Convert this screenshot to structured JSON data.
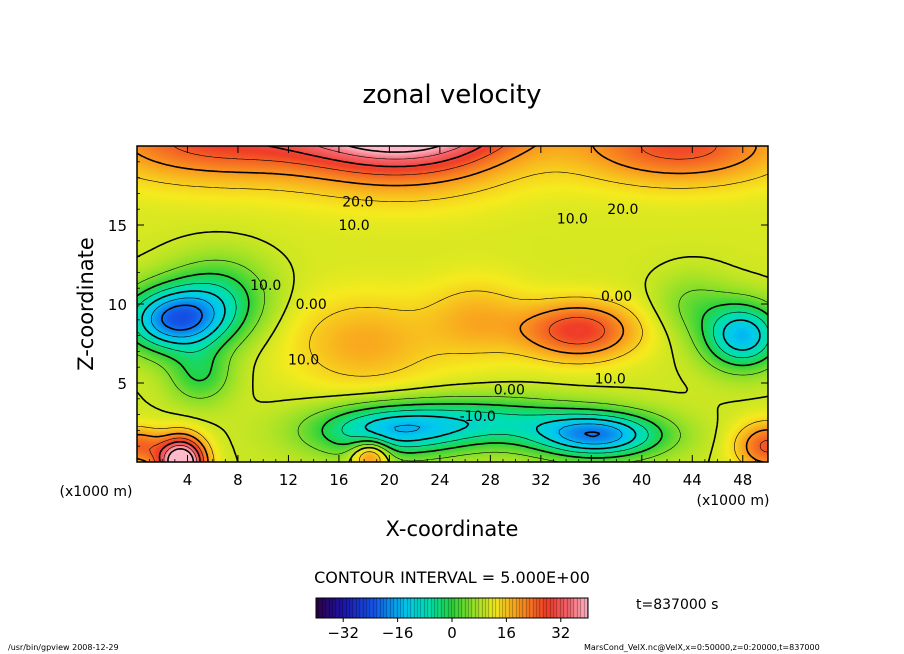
{
  "chart_data": {
    "type": "heatmap",
    "title": "zonal velocity",
    "xlabel": "X-coordinate",
    "ylabel": "Z-coordinate",
    "x_unit_label": "(x1000 m)",
    "y_unit_label": "(x1000 m)",
    "xlim": [
      0,
      50
    ],
    "ylim": [
      0,
      20
    ],
    "x_ticks": [
      4,
      8,
      12,
      16,
      20,
      24,
      28,
      32,
      36,
      40,
      44,
      48
    ],
    "y_ticks": [
      5,
      10,
      15
    ],
    "contour_interval_text": "CONTOUR INTERVAL = 5.000E+00",
    "time_text": "t=837000 s",
    "colorbar": {
      "min": -40,
      "max": 40,
      "ticks": [
        -32,
        -16,
        0,
        16,
        32
      ]
    },
    "contour_labels": [
      {
        "x": 17.5,
        "y": 16.5,
        "text": "20.0"
      },
      {
        "x": 17.2,
        "y": 15.0,
        "text": "10.0"
      },
      {
        "x": 34.5,
        "y": 15.4,
        "text": "10.0"
      },
      {
        "x": 38.5,
        "y": 16.0,
        "text": "20.0"
      },
      {
        "x": 10.2,
        "y": 11.2,
        "text": "10.0"
      },
      {
        "x": 13.8,
        "y": 10.0,
        "text": "0.00"
      },
      {
        "x": 38.0,
        "y": 10.5,
        "text": "0.00"
      },
      {
        "x": 13.2,
        "y": 6.5,
        "text": "10.0"
      },
      {
        "x": 37.5,
        "y": 5.3,
        "text": "10.0"
      },
      {
        "x": 29.5,
        "y": 4.6,
        "text": "0.00"
      },
      {
        "x": 27.0,
        "y": 2.9,
        "text": "-10.0"
      }
    ],
    "field_features": [
      {
        "x": 21.0,
        "y": 22.5,
        "amp": 50,
        "sx": 8.5,
        "sy": 3.8
      },
      {
        "x": 6.0,
        "y": 20.5,
        "amp": 16,
        "sx": 9.0,
        "sy": 2.6
      },
      {
        "x": 43.0,
        "y": 20.0,
        "amp": 16,
        "sx": 8.0,
        "sy": 2.3
      },
      {
        "x": 3.0,
        "y": 9.0,
        "amp": -30,
        "sx": 4.0,
        "sy": 2.0
      },
      {
        "x": 6.5,
        "y": 10.5,
        "amp": -12,
        "sx": 4.0,
        "sy": 2.5
      },
      {
        "x": 5.0,
        "y": 5.5,
        "amp": -10,
        "sx": 2.5,
        "sy": 1.8
      },
      {
        "x": 48.0,
        "y": 8.0,
        "amp": -25,
        "sx": 3.0,
        "sy": 2.0
      },
      {
        "x": 44.0,
        "y": 10.0,
        "amp": -6,
        "sx": 3.0,
        "sy": 2.0
      },
      {
        "x": 20.0,
        "y": 2.0,
        "amp": -22,
        "sx": 6.0,
        "sy": 1.6
      },
      {
        "x": 36.5,
        "y": 1.7,
        "amp": -28,
        "sx": 5.0,
        "sy": 1.4
      },
      {
        "x": 28.0,
        "y": 2.6,
        "amp": -14,
        "sx": 7.0,
        "sy": 1.5
      },
      {
        "x": 35.0,
        "y": 8.3,
        "amp": 18,
        "sx": 4.5,
        "sy": 1.8
      },
      {
        "x": 18.0,
        "y": 7.5,
        "amp": 8,
        "sx": 6.0,
        "sy": 3.0
      },
      {
        "x": 27.0,
        "y": 9.0,
        "amp": 7,
        "sx": 4.0,
        "sy": 2.5
      },
      {
        "x": 3.5,
        "y": 0.0,
        "amp": 40,
        "sx": 1.8,
        "sy": 1.5
      },
      {
        "x": 0.0,
        "y": 1.0,
        "amp": 14,
        "sx": 2.0,
        "sy": 1.2
      },
      {
        "x": 50.0,
        "y": 1.0,
        "amp": 16,
        "sx": 2.5,
        "sy": 1.5
      },
      {
        "x": 18.5,
        "y": 0.5,
        "amp": 16,
        "sx": 1.5,
        "sy": 1.0
      }
    ],
    "field_baseline": 10,
    "field_baseline_y_gradient": 0.05
  },
  "footer": {
    "left_text": "/usr/bin/gpview   2008-12-29",
    "right_text": "MarsCond_VelX.nc@VelX,x=0:50000,z=0:20000,t=837000"
  }
}
